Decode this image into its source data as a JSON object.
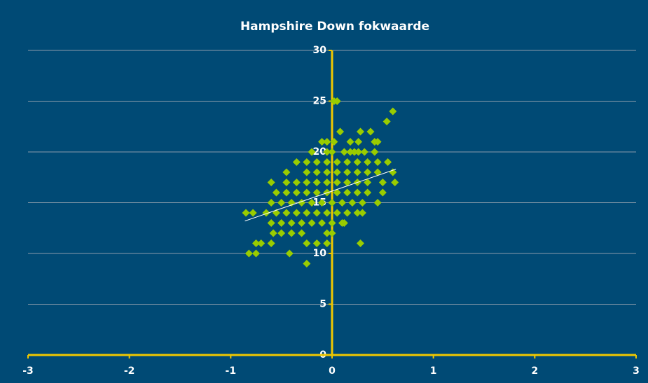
{
  "chart_data": {
    "type": "scatter",
    "title": "Hampshire Down fokwaarde",
    "x": [
      0.02,
      0.05,
      0.6,
      0.54,
      0.08,
      0.28,
      0.38,
      -0.1,
      -0.05,
      0.02,
      0.18,
      0.26,
      0.42,
      0.45,
      -0.2,
      -0.05,
      0.0,
      0.12,
      0.18,
      0.22,
      0.26,
      0.32,
      0.42,
      -0.35,
      -0.25,
      -0.15,
      -0.05,
      0.05,
      0.15,
      0.25,
      0.35,
      0.45,
      0.55,
      -0.45,
      -0.25,
      -0.15,
      -0.05,
      0.05,
      0.15,
      0.25,
      0.35,
      0.45,
      0.6,
      -0.6,
      -0.45,
      -0.35,
      -0.25,
      -0.15,
      -0.05,
      0.05,
      0.15,
      0.25,
      0.35,
      0.5,
      0.62,
      -0.55,
      -0.45,
      -0.35,
      -0.25,
      -0.15,
      -0.05,
      0.05,
      0.15,
      0.25,
      0.35,
      0.5,
      -0.6,
      -0.5,
      -0.4,
      -0.3,
      -0.2,
      -0.1,
      0.0,
      0.1,
      0.2,
      0.3,
      0.45,
      -0.85,
      -0.78,
      -0.65,
      -0.55,
      -0.45,
      -0.35,
      -0.25,
      -0.15,
      -0.05,
      0.05,
      0.15,
      0.25,
      0.3,
      -0.6,
      -0.5,
      -0.4,
      -0.3,
      -0.2,
      -0.1,
      0.0,
      0.1,
      0.12,
      -0.58,
      -0.5,
      -0.4,
      -0.3,
      -0.05,
      0.0,
      -0.75,
      -0.7,
      -0.6,
      -0.25,
      -0.15,
      -0.05,
      0.28,
      -0.82,
      -0.75,
      -0.42,
      -0.25
    ],
    "values": [
      25,
      25,
      24,
      23,
      22,
      22,
      22,
      21,
      21,
      21,
      21,
      21,
      21,
      21,
      20,
      20,
      20,
      20,
      20,
      20,
      20,
      20,
      20,
      19,
      19,
      19,
      19,
      19,
      19,
      19,
      19,
      19,
      19,
      18,
      18,
      18,
      18,
      18,
      18,
      18,
      18,
      18,
      18,
      17,
      17,
      17,
      17,
      17,
      17,
      17,
      17,
      17,
      17,
      17,
      17,
      16,
      16,
      16,
      16,
      16,
      16,
      16,
      16,
      16,
      16,
      16,
      15,
      15,
      15,
      15,
      15,
      15,
      15,
      15,
      15,
      15,
      15,
      14,
      14,
      14,
      14,
      14,
      14,
      14,
      14,
      14,
      14,
      14,
      14,
      14,
      13,
      13,
      13,
      13,
      13,
      13,
      13,
      13,
      13,
      12,
      12,
      12,
      12,
      12,
      12,
      11,
      11,
      11,
      11,
      11,
      11,
      11,
      10,
      10,
      10,
      9
    ],
    "color": "#99cc00",
    "trendline": {
      "x": [
        -0.86,
        0.63
      ],
      "y": [
        13.2,
        18.3
      ],
      "color": "#ffffff"
    },
    "xlim": [
      -3,
      3
    ],
    "xticks": [
      -3,
      -2,
      -1,
      0,
      1,
      2,
      3
    ],
    "ylim": [
      0,
      30
    ],
    "yticks": [
      0,
      5,
      10,
      15,
      20,
      25,
      30
    ],
    "grid": true,
    "axis_color": "#f0c800",
    "background": "#004a75"
  }
}
